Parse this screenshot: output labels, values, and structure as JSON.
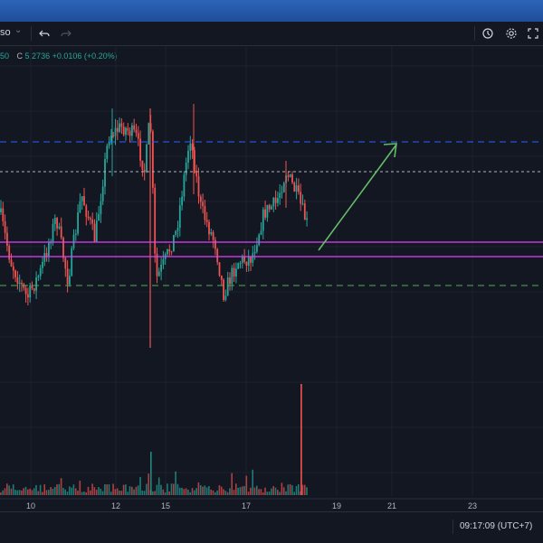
{
  "toolbar": {
    "symbol_fragment": "so",
    "undo_icon": "undo-icon",
    "redo_icon": "redo-icon",
    "alert_icon": "alert-clock-icon",
    "settings_icon": "gear-icon",
    "fullscreen_icon": "fullscreen-icon"
  },
  "ohlc": {
    "open_fragment": "50",
    "close_label": "C",
    "close_value": "5.2736",
    "change": "+0.0106 (+0.20%)"
  },
  "footer": {
    "clock": "09:17:09 (UTC+7)"
  },
  "colors": {
    "background": "#131722",
    "up": "#26a69a",
    "down": "#ef5350",
    "grid": "#1e222d",
    "blue_line": "#2962ff",
    "green_line": "#4caf50",
    "magenta_line": "#e040fb",
    "white_dotted": "#b2b5be",
    "arrow": "#66bb6a"
  },
  "chart_data": {
    "type": "candlestick",
    "x_tick_labels": [
      "10",
      "12",
      "15",
      "17",
      "19",
      "21",
      "23"
    ],
    "annotations": [
      {
        "kind": "horizontal-dashed",
        "color": "blue",
        "name": "resistance-blue"
      },
      {
        "kind": "horizontal-dotted",
        "color": "white",
        "name": "level-white"
      },
      {
        "kind": "horizontal-solid",
        "color": "magenta",
        "name": "support-band-top"
      },
      {
        "kind": "horizontal-solid",
        "color": "magenta",
        "name": "support-band-bottom"
      },
      {
        "kind": "horizontal-dashed",
        "color": "green",
        "name": "support-green"
      },
      {
        "kind": "arrow",
        "color": "green",
        "direction": "up-right",
        "name": "projection-arrow"
      }
    ],
    "volume_pane": true
  }
}
